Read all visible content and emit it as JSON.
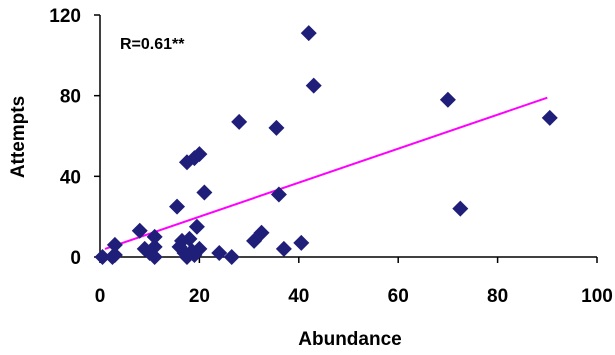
{
  "chart_data": {
    "type": "scatter",
    "title": "",
    "xlabel": "Abundance",
    "ylabel": "Attempts",
    "xlim": [
      0,
      100
    ],
    "ylim": [
      0,
      120
    ],
    "x_ticks": [
      0,
      20,
      40,
      60,
      80,
      100
    ],
    "y_ticks": [
      0,
      40,
      80,
      120
    ],
    "grid": false,
    "legend": "none",
    "annotation": "R=0.61**",
    "marker": "diamond",
    "marker_color": "#1f1f7a",
    "trendline_color": "#ff00ff",
    "trendline": {
      "x": [
        1,
        90
      ],
      "y": [
        4,
        79
      ]
    },
    "points": [
      {
        "x": 0.5,
        "y": 0
      },
      {
        "x": 2.5,
        "y": 0
      },
      {
        "x": 3,
        "y": 6
      },
      {
        "x": 3,
        "y": 1
      },
      {
        "x": 8,
        "y": 13
      },
      {
        "x": 9,
        "y": 4
      },
      {
        "x": 10,
        "y": 2
      },
      {
        "x": 11,
        "y": 10
      },
      {
        "x": 11,
        "y": 5
      },
      {
        "x": 11,
        "y": 0
      },
      {
        "x": 15.5,
        "y": 25
      },
      {
        "x": 16,
        "y": 5
      },
      {
        "x": 16.5,
        "y": 8
      },
      {
        "x": 17,
        "y": 2
      },
      {
        "x": 17.5,
        "y": 0
      },
      {
        "x": 17.5,
        "y": 47
      },
      {
        "x": 18,
        "y": 9
      },
      {
        "x": 18.5,
        "y": 3
      },
      {
        "x": 19,
        "y": 49
      },
      {
        "x": 19,
        "y": 1
      },
      {
        "x": 19.5,
        "y": 15
      },
      {
        "x": 20,
        "y": 51
      },
      {
        "x": 20,
        "y": 4
      },
      {
        "x": 21,
        "y": 32
      },
      {
        "x": 24,
        "y": 2
      },
      {
        "x": 26.5,
        "y": 0
      },
      {
        "x": 28,
        "y": 67
      },
      {
        "x": 31,
        "y": 8
      },
      {
        "x": 32.5,
        "y": 12
      },
      {
        "x": 35.5,
        "y": 64
      },
      {
        "x": 36,
        "y": 31
      },
      {
        "x": 37,
        "y": 4
      },
      {
        "x": 40.5,
        "y": 7
      },
      {
        "x": 42,
        "y": 111
      },
      {
        "x": 43,
        "y": 85
      },
      {
        "x": 70,
        "y": 78
      },
      {
        "x": 72.5,
        "y": 24
      },
      {
        "x": 90.5,
        "y": 69
      }
    ]
  }
}
